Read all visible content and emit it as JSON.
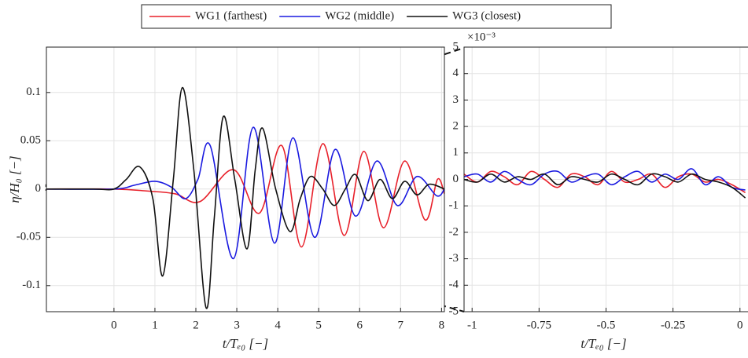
{
  "chart_data": [
    {
      "type": "line",
      "ylabel": "η/H₀ [−]",
      "xlabel": "t/Tₑ₀ [−]",
      "xlim": [
        -1.65,
        8.07
      ],
      "ylim": [
        -0.127,
        0.147
      ],
      "xticks": [
        0,
        1,
        2,
        3,
        4,
        5,
        6,
        7,
        8
      ],
      "yticks": [
        -0.1,
        -0.05,
        0,
        0.05,
        0.1
      ],
      "grid": true,
      "legend": "top",
      "series": [
        {
          "name": "WG1 (farthest)",
          "color": "#e8202a",
          "x": [
            -1.65,
            0,
            0.8,
            1.5,
            2.1,
            2.92,
            3.55,
            4.1,
            4.58,
            5.1,
            5.62,
            6.1,
            6.58,
            7.1,
            7.6,
            7.9,
            8.07
          ],
          "values": [
            0,
            0,
            -0.002,
            -0.005,
            -0.013,
            0.02,
            -0.025,
            0.045,
            -0.06,
            0.047,
            -0.048,
            0.039,
            -0.04,
            0.029,
            -0.032,
            0.01,
            -0.005
          ]
        },
        {
          "name": "WG2 (middle)",
          "color": "#1a1ae0",
          "x": [
            -1.65,
            0,
            0.5,
            1.0,
            1.4,
            1.75,
            2.05,
            2.35,
            2.92,
            3.4,
            3.92,
            4.37,
            4.9,
            5.4,
            5.9,
            6.42,
            6.92,
            7.4,
            7.88,
            8.07
          ],
          "values": [
            0,
            0,
            0.004,
            0.008,
            0.002,
            -0.01,
            0.01,
            0.045,
            -0.072,
            0.064,
            -0.056,
            0.053,
            -0.05,
            0.041,
            -0.028,
            0.029,
            -0.017,
            0.013,
            -0.007,
            0
          ]
        },
        {
          "name": "WG3 (closest)",
          "color": "#111111",
          "x": [
            -1.65,
            -0.5,
            0,
            0.3,
            0.63,
            0.95,
            1.19,
            1.45,
            1.67,
            1.95,
            2.25,
            2.45,
            2.67,
            2.95,
            3.25,
            3.45,
            3.63,
            3.95,
            4.3,
            4.55,
            4.8,
            5.1,
            5.38,
            5.65,
            5.9,
            6.2,
            6.5,
            6.8,
            7.1,
            7.4,
            7.7,
            8.07
          ],
          "values": [
            0,
            0,
            0,
            0.01,
            0.023,
            -0.01,
            -0.09,
            0.01,
            0.105,
            0.02,
            -0.123,
            -0.03,
            0.075,
            0.01,
            -0.062,
            0.02,
            0.063,
            0.0,
            -0.044,
            -0.01,
            0.013,
            0.0,
            -0.017,
            0.0,
            0.015,
            -0.012,
            0.01,
            -0.01,
            0.008,
            -0.006,
            0.005,
            0
          ]
        }
      ]
    },
    {
      "type": "line",
      "xlabel": "t/Tₑ₀ [−]",
      "y_multiplier": "×10⁻³",
      "xlim": [
        -1.03,
        0.03
      ],
      "ylim": [
        -5,
        5
      ],
      "xticks": [
        -1,
        -0.75,
        -0.5,
        -0.25,
        0
      ],
      "yticks": [
        -5,
        -4,
        -3,
        -2,
        -1,
        0,
        1,
        2,
        3,
        4,
        5
      ],
      "grid": true,
      "x": [
        -1.03,
        -0.98,
        -0.93,
        -0.88,
        -0.83,
        -0.78,
        -0.73,
        -0.68,
        -0.63,
        -0.58,
        -0.53,
        -0.48,
        -0.43,
        -0.38,
        -0.33,
        -0.28,
        -0.23,
        -0.18,
        -0.13,
        -0.08,
        -0.03,
        0.02
      ],
      "series": [
        {
          "color": "#e8202a",
          "values": [
            0.2,
            -0.1,
            0.3,
            0.1,
            -0.2,
            0.3,
            0.0,
            -0.3,
            0.2,
            0.1,
            -0.2,
            0.3,
            -0.1,
            0.0,
            0.2,
            -0.3,
            0.1,
            0.2,
            -0.1,
            0.0,
            -0.2,
            -0.5
          ]
        },
        {
          "color": "#1a1ae0",
          "values": [
            0.1,
            0.2,
            -0.1,
            0.3,
            0.0,
            -0.2,
            0.2,
            0.3,
            -0.1,
            0.1,
            0.2,
            -0.2,
            0.1,
            0.3,
            -0.1,
            0.2,
            0.0,
            0.4,
            -0.2,
            0.1,
            -0.3,
            -0.4
          ]
        },
        {
          "color": "#111111",
          "values": [
            0.0,
            -0.1,
            0.2,
            -0.1,
            0.1,
            0.0,
            0.2,
            -0.2,
            0.1,
            0.0,
            -0.1,
            0.2,
            0.0,
            -0.2,
            0.2,
            0.1,
            -0.1,
            0.2,
            0.0,
            -0.1,
            -0.3,
            -0.7
          ]
        }
      ]
    }
  ]
}
